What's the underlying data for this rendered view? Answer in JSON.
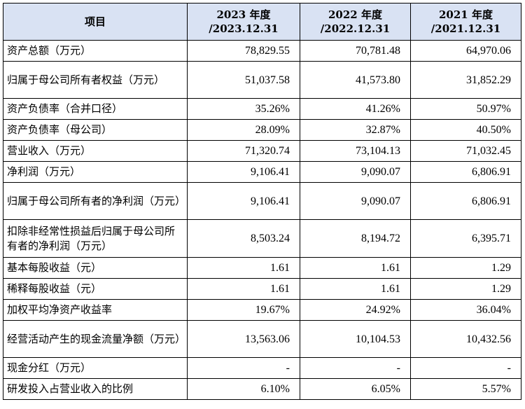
{
  "header": {
    "item": "项目",
    "cols": [
      {
        "year": "2023 年度",
        "date": "/2023.12.31"
      },
      {
        "year": "2022 年度",
        "date": "/2022.12.31"
      },
      {
        "year": "2021 年度",
        "date": "/2021.12.31"
      }
    ]
  },
  "rows": [
    {
      "label": "资产总额（万元）",
      "values": [
        "78,829.55",
        "70,781.48",
        "64,970.06"
      ]
    },
    {
      "label": "归属于母公司所有者权益（万元）",
      "values": [
        "51,037.58",
        "41,573.80",
        "31,852.29"
      ]
    },
    {
      "label": "资产负债率（合并口径）",
      "values": [
        "35.26%",
        "41.26%",
        "50.97%"
      ]
    },
    {
      "label": "资产负债率（母公司）",
      "values": [
        "28.09%",
        "32.87%",
        "40.50%"
      ]
    },
    {
      "label": "营业收入（万元）",
      "values": [
        "71,320.74",
        "73,104.13",
        "71,032.45"
      ]
    },
    {
      "label": "净利润（万元）",
      "values": [
        "9,106.41",
        "9,090.07",
        "6,806.91"
      ]
    },
    {
      "label": "归属于母公司所有者的净利润（万元）",
      "values": [
        "9,106.41",
        "9,090.07",
        "6,806.91"
      ]
    },
    {
      "label": "扣除非经常性损益后归属于母公司所有者的净利润（万元）",
      "values": [
        "8,503.24",
        "8,194.72",
        "6,395.71"
      ]
    },
    {
      "label": "基本每股收益（元）",
      "values": [
        "1.61",
        "1.61",
        "1.29"
      ]
    },
    {
      "label": "稀释每股收益（元）",
      "values": [
        "1.61",
        "1.61",
        "1.29"
      ]
    },
    {
      "label": "加权平均净资产收益率",
      "values": [
        "19.67%",
        "24.92%",
        "36.04%"
      ]
    },
    {
      "label": "经营活动产生的现金流量净额（万元）",
      "values": [
        "13,563.06",
        "10,104.53",
        "10,432.56"
      ]
    },
    {
      "label": "现金分红（万元）",
      "values": [
        "-",
        "-",
        "-"
      ]
    },
    {
      "label": "研发投入占营业收入的比例",
      "values": [
        "6.10%",
        "6.05%",
        "5.57%"
      ]
    }
  ],
  "colors": {
    "header_bg": "#d9e2f3",
    "border": "#000000"
  }
}
